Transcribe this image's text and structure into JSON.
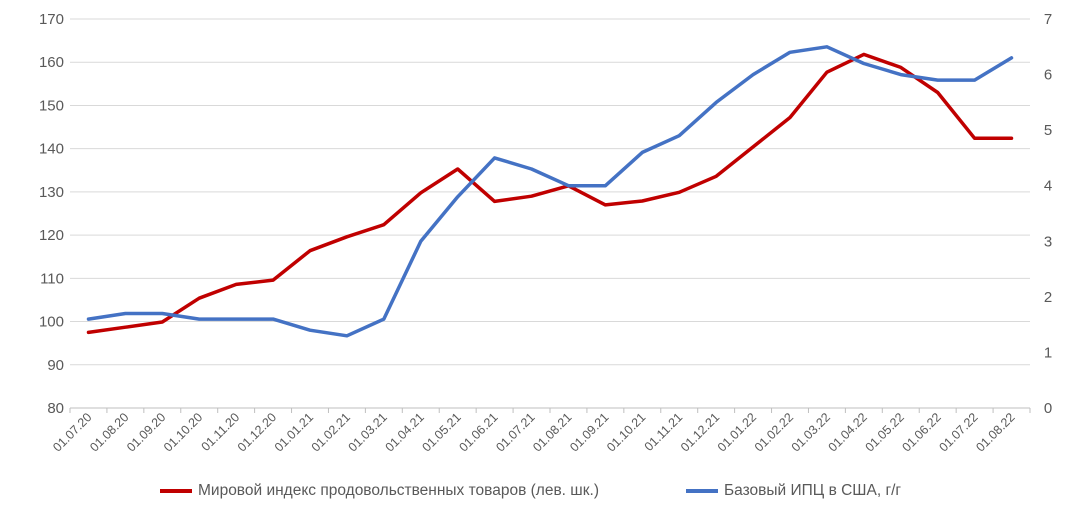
{
  "chart_data": {
    "type": "line",
    "categories": [
      "01.07.20",
      "01.08.20",
      "01.09.20",
      "01.10.20",
      "01.11.20",
      "01.12.20",
      "01.01.21",
      "01.02.21",
      "01.03.21",
      "01.04.21",
      "01.05.21",
      "01.06.21",
      "01.07.21",
      "01.08.21",
      "01.09.21",
      "01.10.21",
      "01.11.21",
      "01.12.21",
      "01.01.22",
      "01.02.22",
      "01.03.22",
      "01.04.22",
      "01.05.22",
      "01.06.22",
      "01.07.22",
      "01.08.22"
    ],
    "y_left": {
      "min": 80,
      "max": 170,
      "step": 10
    },
    "y_right": {
      "min": 0,
      "max": 7,
      "step": 1
    },
    "grid": true,
    "legend_position": "bottom",
    "series": [
      {
        "name": "Мировой индекс продовольственных товаров (лев. шк.)",
        "axis": "left",
        "color": "#C00000",
        "values": [
          97.5,
          98.7,
          99.9,
          105.4,
          108.6,
          109.6,
          116.4,
          119.6,
          122.4,
          129.8,
          135.3,
          127.8,
          129.0,
          131.4,
          127.0,
          127.9,
          129.9,
          133.6,
          140.4,
          147.2,
          157.7,
          161.8,
          158.8,
          153.0,
          142.4,
          142.4
        ]
      },
      {
        "name": "Базовый ИПЦ в США, г/г",
        "axis": "right",
        "color": "#4472C4",
        "values": [
          1.6,
          1.7,
          1.7,
          1.6,
          1.6,
          1.6,
          1.4,
          1.3,
          1.6,
          3.0,
          3.8,
          4.5,
          4.3,
          4.0,
          4.0,
          4.6,
          4.9,
          5.5,
          6.0,
          6.4,
          6.5,
          6.2,
          6.0,
          5.9,
          5.9,
          6.3
        ]
      }
    ]
  }
}
